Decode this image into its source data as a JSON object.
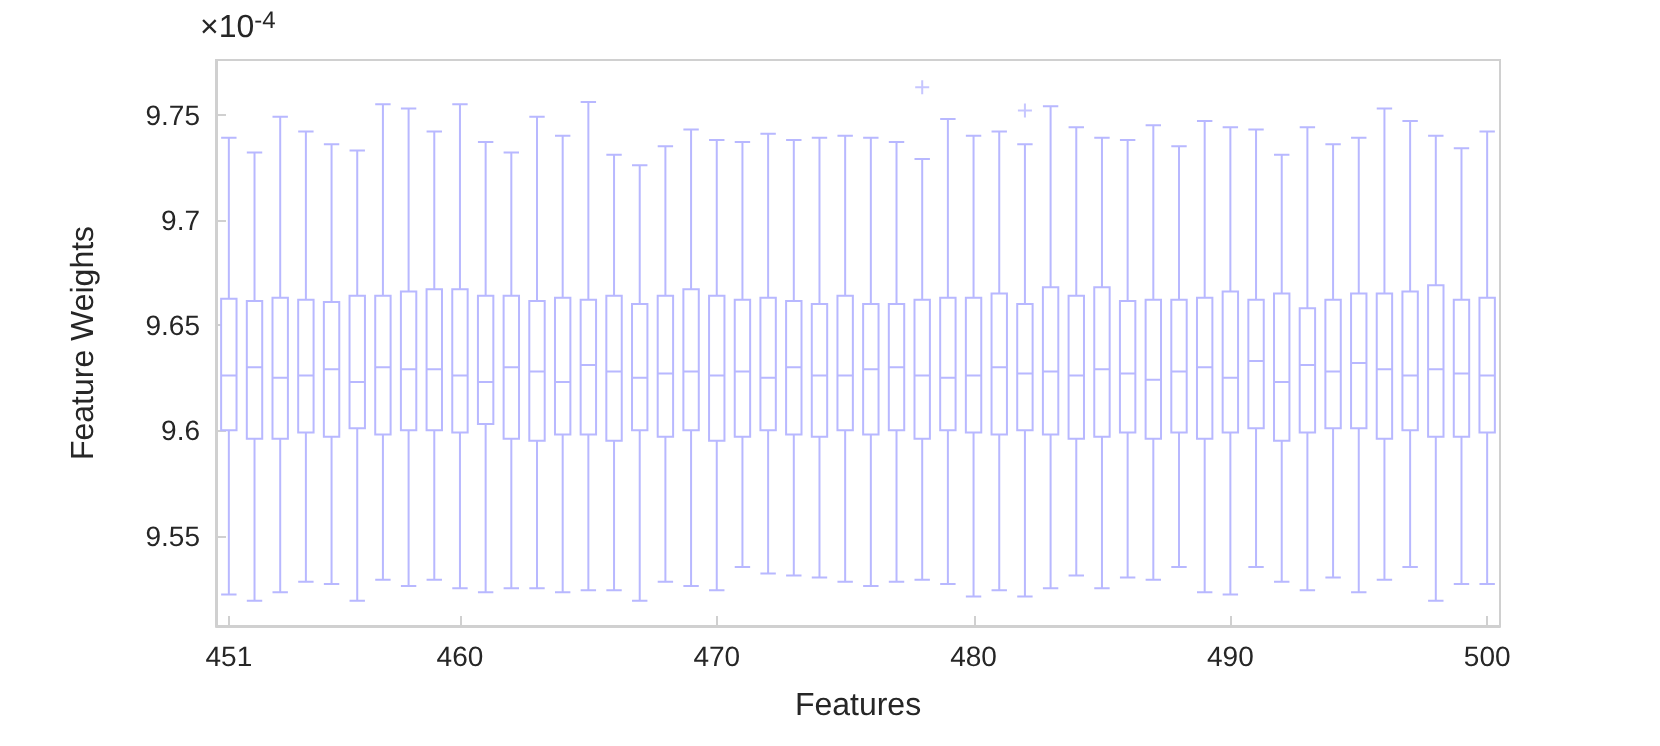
{
  "chart_data": {
    "type": "box",
    "xlabel": "Features",
    "ylabel": "Feature Weights",
    "annotations": [
      "×10$^{-4}$"
    ],
    "categories": [
      "451",
      null,
      null,
      null,
      null,
      null,
      null,
      null,
      null,
      "460",
      null,
      null,
      null,
      null,
      null,
      null,
      null,
      null,
      null,
      "470",
      null,
      null,
      null,
      null,
      null,
      null,
      null,
      null,
      null,
      "480",
      null,
      null,
      null,
      null,
      null,
      null,
      null,
      null,
      null,
      "490",
      null,
      null,
      null,
      null,
      null,
      null,
      null,
      null,
      null,
      "500"
    ],
    "ylim": [
      9.507,
      9.776
    ],
    "yticks": [
      9.55,
      9.6,
      9.65,
      9.7,
      9.75
    ],
    "grid": false,
    "series": [
      {
        "color": "#b8b8ff",
        "boxes": [
          {
            "low": 9.522,
            "q1": 9.6,
            "median": 9.626,
            "q3": 9.6625,
            "high": 9.739
          },
          {
            "low": 9.519,
            "q1": 9.596,
            "median": 9.63,
            "q3": 9.6615,
            "high": 9.732
          },
          {
            "low": 9.523,
            "q1": 9.596,
            "median": 9.625,
            "q3": 9.663,
            "high": 9.749
          },
          {
            "low": 9.528,
            "q1": 9.599,
            "median": 9.626,
            "q3": 9.662,
            "high": 9.742
          },
          {
            "low": 9.527,
            "q1": 9.597,
            "median": 9.629,
            "q3": 9.661,
            "high": 9.736
          },
          {
            "low": 9.519,
            "q1": 9.601,
            "median": 9.623,
            "q3": 9.664,
            "high": 9.733
          },
          {
            "low": 9.529,
            "q1": 9.598,
            "median": 9.63,
            "q3": 9.664,
            "high": 9.755
          },
          {
            "low": 9.526,
            "q1": 9.6,
            "median": 9.629,
            "q3": 9.666,
            "high": 9.753
          },
          {
            "low": 9.529,
            "q1": 9.6,
            "median": 9.629,
            "q3": 9.667,
            "high": 9.742
          },
          {
            "low": 9.525,
            "q1": 9.599,
            "median": 9.626,
            "q3": 9.667,
            "high": 9.755
          },
          {
            "low": 9.523,
            "q1": 9.603,
            "median": 9.623,
            "q3": 9.664,
            "high": 9.737
          },
          {
            "low": 9.525,
            "q1": 9.596,
            "median": 9.63,
            "q3": 9.664,
            "high": 9.732
          },
          {
            "low": 9.525,
            "q1": 9.595,
            "median": 9.628,
            "q3": 9.6615,
            "high": 9.749
          },
          {
            "low": 9.523,
            "q1": 9.598,
            "median": 9.623,
            "q3": 9.663,
            "high": 9.74
          },
          {
            "low": 9.524,
            "q1": 9.598,
            "median": 9.631,
            "q3": 9.662,
            "high": 9.756
          },
          {
            "low": 9.524,
            "q1": 9.595,
            "median": 9.628,
            "q3": 9.664,
            "high": 9.731
          },
          {
            "low": 9.519,
            "q1": 9.6,
            "median": 9.625,
            "q3": 9.66,
            "high": 9.726
          },
          {
            "low": 9.528,
            "q1": 9.597,
            "median": 9.627,
            "q3": 9.664,
            "high": 9.735
          },
          {
            "low": 9.526,
            "q1": 9.6,
            "median": 9.628,
            "q3": 9.667,
            "high": 9.743
          },
          {
            "low": 9.524,
            "q1": 9.595,
            "median": 9.626,
            "q3": 9.664,
            "high": 9.738
          },
          {
            "low": 9.535,
            "q1": 9.597,
            "median": 9.628,
            "q3": 9.662,
            "high": 9.737
          },
          {
            "low": 9.532,
            "q1": 9.6,
            "median": 9.625,
            "q3": 9.663,
            "high": 9.741
          },
          {
            "low": 9.531,
            "q1": 9.598,
            "median": 9.63,
            "q3": 9.6615,
            "high": 9.738
          },
          {
            "low": 9.53,
            "q1": 9.597,
            "median": 9.626,
            "q3": 9.66,
            "high": 9.739
          },
          {
            "low": 9.528,
            "q1": 9.6,
            "median": 9.626,
            "q3": 9.664,
            "high": 9.74
          },
          {
            "low": 9.526,
            "q1": 9.598,
            "median": 9.629,
            "q3": 9.66,
            "high": 9.739
          },
          {
            "low": 9.528,
            "q1": 9.6,
            "median": 9.63,
            "q3": 9.66,
            "high": 9.737
          },
          {
            "low": 9.529,
            "q1": 9.596,
            "median": 9.626,
            "q3": 9.662,
            "high": 9.729,
            "outliers": [
              9.763
            ]
          },
          {
            "low": 9.527,
            "q1": 9.6,
            "median": 9.625,
            "q3": 9.663,
            "high": 9.748
          },
          {
            "low": 9.521,
            "q1": 9.599,
            "median": 9.626,
            "q3": 9.663,
            "high": 9.74
          },
          {
            "low": 9.524,
            "q1": 9.598,
            "median": 9.63,
            "q3": 9.665,
            "high": 9.742
          },
          {
            "low": 9.521,
            "q1": 9.6,
            "median": 9.627,
            "q3": 9.66,
            "high": 9.736,
            "outliers": [
              9.752
            ]
          },
          {
            "low": 9.525,
            "q1": 9.598,
            "median": 9.628,
            "q3": 9.668,
            "high": 9.754
          },
          {
            "low": 9.531,
            "q1": 9.596,
            "median": 9.626,
            "q3": 9.664,
            "high": 9.744
          },
          {
            "low": 9.525,
            "q1": 9.597,
            "median": 9.629,
            "q3": 9.668,
            "high": 9.739
          },
          {
            "low": 9.53,
            "q1": 9.599,
            "median": 9.627,
            "q3": 9.6615,
            "high": 9.738
          },
          {
            "low": 9.529,
            "q1": 9.596,
            "median": 9.624,
            "q3": 9.662,
            "high": 9.745
          },
          {
            "low": 9.535,
            "q1": 9.599,
            "median": 9.628,
            "q3": 9.662,
            "high": 9.735
          },
          {
            "low": 9.523,
            "q1": 9.596,
            "median": 9.63,
            "q3": 9.663,
            "high": 9.747
          },
          {
            "low": 9.522,
            "q1": 9.599,
            "median": 9.625,
            "q3": 9.666,
            "high": 9.744
          },
          {
            "low": 9.535,
            "q1": 9.601,
            "median": 9.633,
            "q3": 9.662,
            "high": 9.743
          },
          {
            "low": 9.528,
            "q1": 9.595,
            "median": 9.623,
            "q3": 9.665,
            "high": 9.731
          },
          {
            "low": 9.524,
            "q1": 9.599,
            "median": 9.631,
            "q3": 9.658,
            "high": 9.744
          },
          {
            "low": 9.53,
            "q1": 9.601,
            "median": 9.628,
            "q3": 9.662,
            "high": 9.736
          },
          {
            "low": 9.523,
            "q1": 9.601,
            "median": 9.632,
            "q3": 9.665,
            "high": 9.739
          },
          {
            "low": 9.529,
            "q1": 9.596,
            "median": 9.629,
            "q3": 9.665,
            "high": 9.753
          },
          {
            "low": 9.535,
            "q1": 9.6,
            "median": 9.626,
            "q3": 9.666,
            "high": 9.747
          },
          {
            "low": 9.519,
            "q1": 9.597,
            "median": 9.629,
            "q3": 9.669,
            "high": 9.74
          },
          {
            "low": 9.527,
            "q1": 9.597,
            "median": 9.627,
            "q3": 9.662,
            "high": 9.734
          },
          {
            "low": 9.527,
            "q1": 9.599,
            "median": 9.626,
            "q3": 9.663,
            "high": 9.742
          }
        ]
      }
    ]
  }
}
